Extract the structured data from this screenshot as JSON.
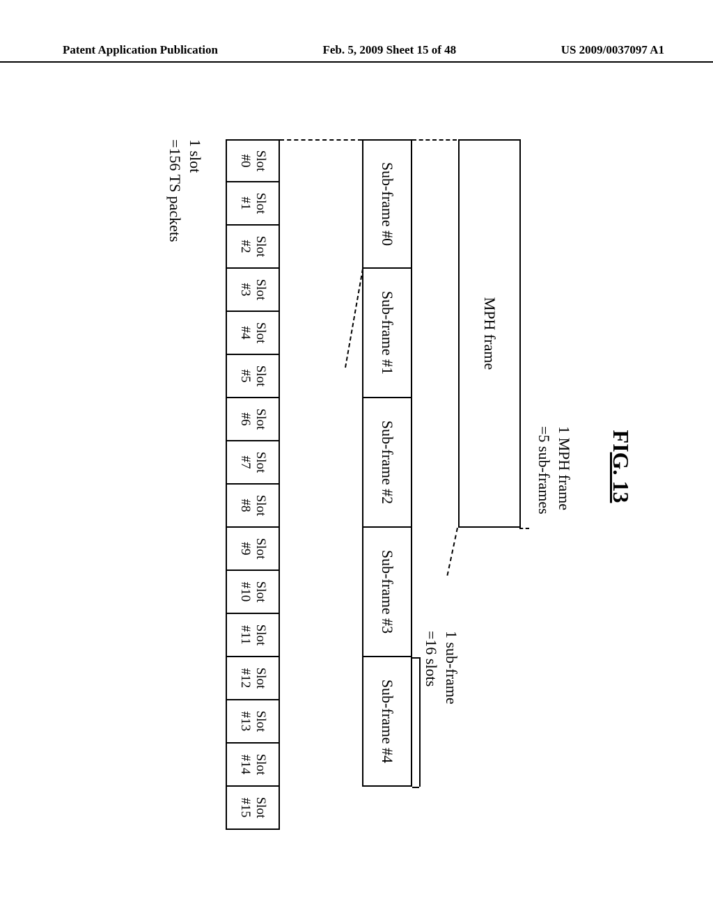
{
  "header": {
    "left": "Patent Application Publication",
    "center": "Feb. 5, 2009  Sheet 15 of 48",
    "right": "US 2009/0037097 A1"
  },
  "figure": {
    "title_prefix": "FI",
    "title_under": "G. 13",
    "mph_frame_label_l1": "1 MPH frame",
    "mph_frame_label_l2": "=5 sub-frames",
    "mph_box": "MPH frame",
    "subframes": [
      "Sub-frame #0",
      "Sub-frame #1",
      "Sub-frame #2",
      "Sub-frame #3",
      "Sub-frame #4"
    ],
    "subframe_label_l1": "1 sub-frame",
    "subframe_label_l2": "=16 slots",
    "slots_line1": [
      "Slot",
      "Slot",
      "Slot",
      "Slot",
      "Slot",
      "Slot",
      "Slot",
      "Slot",
      "Slot",
      "Slot",
      "Slot",
      "Slot",
      "Slot",
      "Slot",
      "Slot",
      "Slot"
    ],
    "slots_line2": [
      "#0",
      "#1",
      "#2",
      "#3",
      "#4",
      "#5",
      "#6",
      "#7",
      "#8",
      "#9",
      "#10",
      "#11",
      "#12",
      "#13",
      "#14",
      "#15"
    ],
    "slot_note_l1": "1 slot",
    "slot_note_l2": "=156 TS packets"
  }
}
